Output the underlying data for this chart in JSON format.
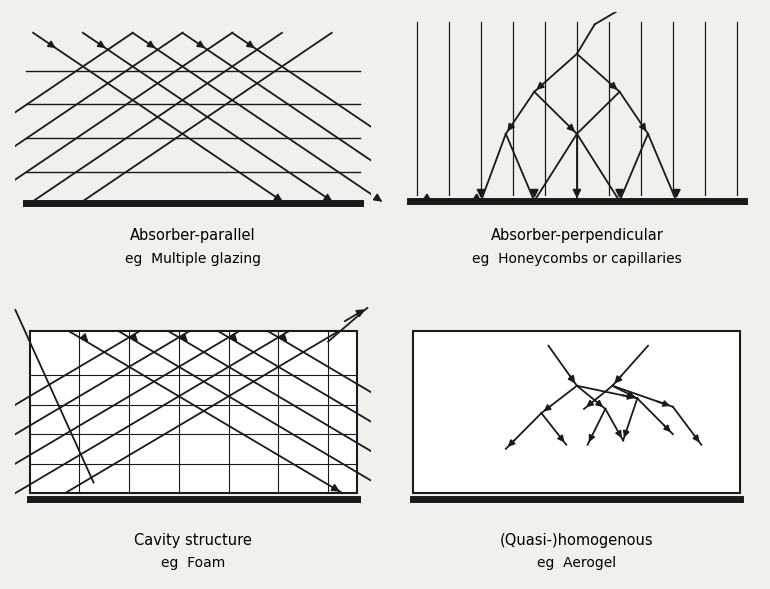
{
  "bg_color": "#f0f0ec",
  "line_color": "#1a1a1a",
  "title_fontsize": 10.5,
  "label_fontsize": 10,
  "panels": [
    {
      "title": "Absorber-parallel",
      "subtitle": "eg  Multiple glazing",
      "type": "parallel"
    },
    {
      "title": "Absorber-perpendicular",
      "subtitle": "eg  Honeycombs or capillaries",
      "type": "perpendicular"
    },
    {
      "title": "Cavity structure",
      "subtitle": "eg  Foam",
      "type": "cavity"
    },
    {
      "title": "(Quasi-)homogenous",
      "subtitle": "eg  Aerogel",
      "type": "homogenous"
    }
  ]
}
